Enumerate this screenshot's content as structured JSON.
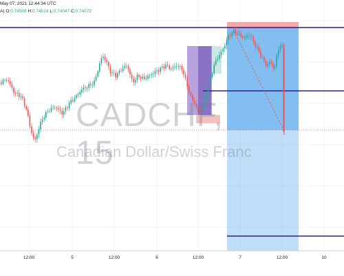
{
  "header": {
    "datetime": "May 07, 2021 12:44:34 UTC",
    "ohlc_prefix": "A)",
    "open_label": "O:",
    "open": "0.74508",
    "high_label": "H:",
    "high": "0.74514",
    "low_label": "L:",
    "low": "0.74047",
    "close_label": "C:",
    "close": "0.74072"
  },
  "watermark": {
    "symbol": "CADCHF, 15",
    "name": "Canadian Dollar/Swiss Franc"
  },
  "colors": {
    "up": "#26a69a",
    "down": "#ef5350",
    "level_line": "#311b92",
    "projection_fill": "#1e88e5",
    "stop_fill": "#e57373",
    "pattern_fill": "#7e57c2"
  },
  "chart_data": {
    "type": "candlestick",
    "symbol": "CADCHF",
    "timeframe": "15",
    "x_tick_labels": [
      "12:00",
      "5",
      "12:00",
      "6",
      "12:00",
      "7",
      "12:00",
      "10"
    ],
    "last_close": 0.74072,
    "annotations": [
      "horizontal levels",
      "short position projection",
      "pattern boxes"
    ]
  }
}
